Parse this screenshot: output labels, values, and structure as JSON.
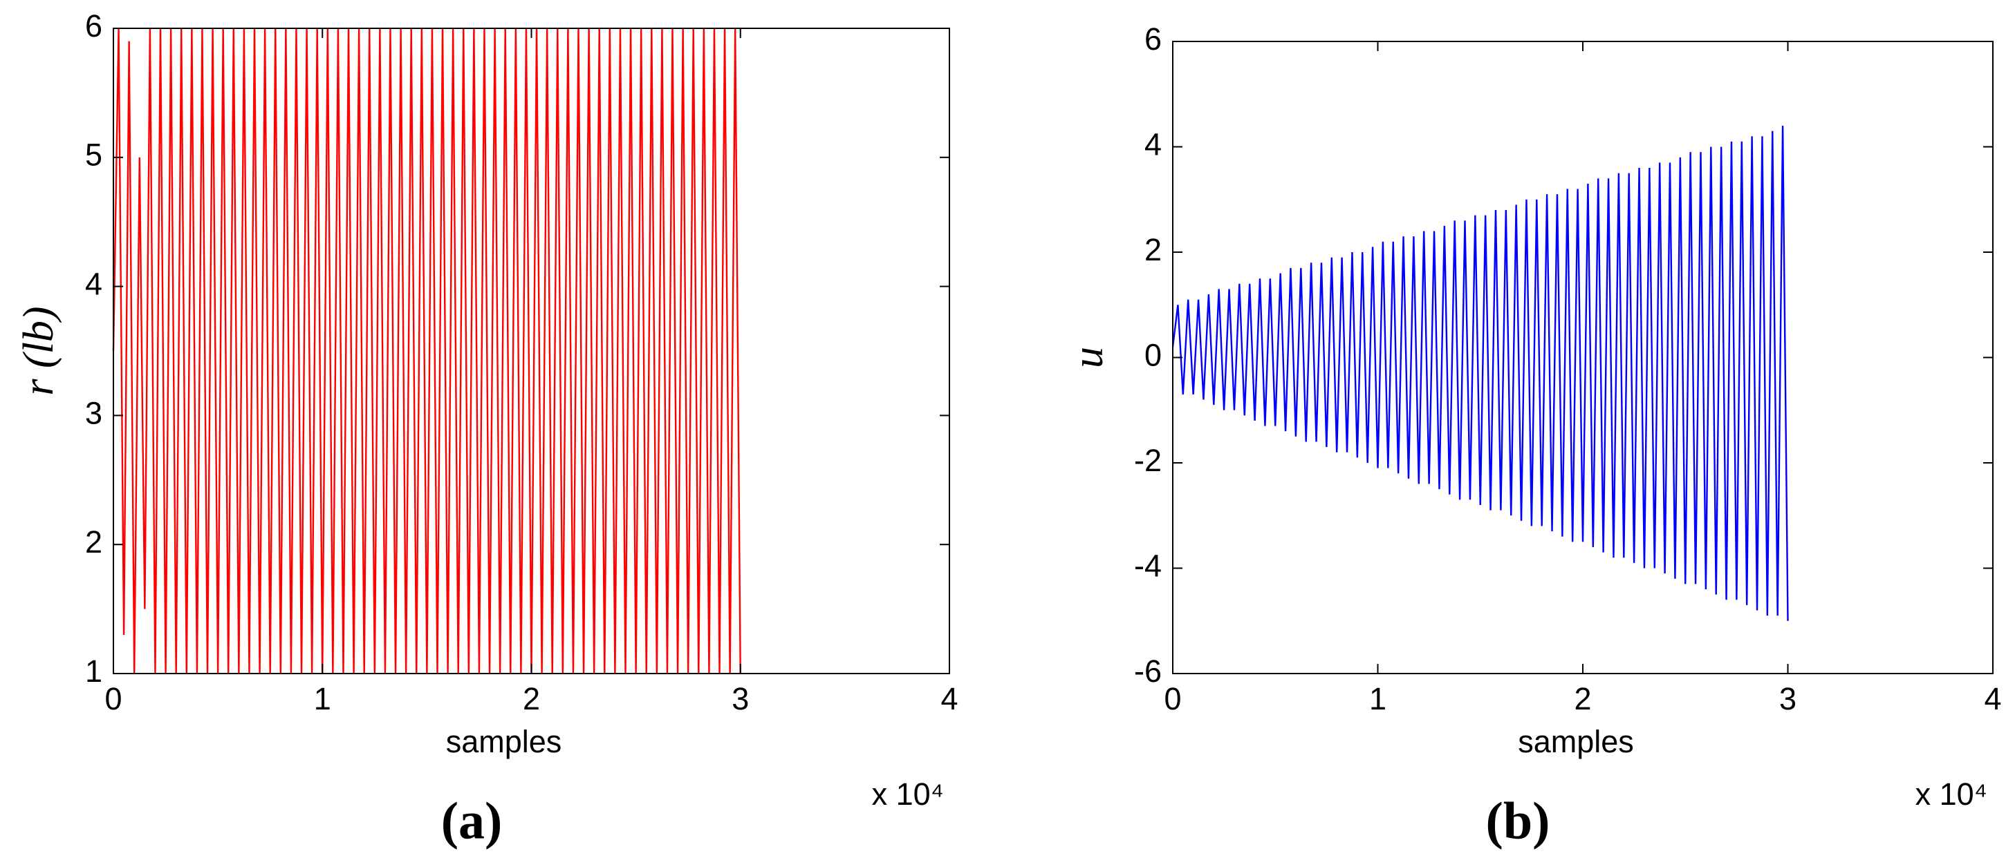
{
  "chart_data": [
    {
      "type": "line",
      "panel_label": "(a)",
      "xlabel": "samples",
      "ylabel": "r (lb)",
      "x_exponent_label": "x 10⁴",
      "color": "#ff0000",
      "xlim": [
        0,
        40000
      ],
      "xticks": [
        {
          "value": 0,
          "label": "0"
        },
        {
          "value": 10000,
          "label": "1"
        },
        {
          "value": 20000,
          "label": "2"
        },
        {
          "value": 30000,
          "label": "3"
        },
        {
          "value": 40000,
          "label": "4"
        }
      ],
      "ylim": [
        1,
        6
      ],
      "yticks": [
        1,
        2,
        3,
        4,
        5,
        6
      ],
      "x": [
        0,
        250,
        500,
        750,
        1000,
        1250,
        1500,
        1750,
        2000,
        2250,
        2500,
        2750,
        3000,
        3250,
        3500,
        3750,
        4000,
        4250,
        4500,
        4750,
        5000,
        5250,
        5500,
        5750,
        6000,
        6250,
        6500,
        6750,
        7000,
        7250,
        7500,
        7750,
        8000,
        8250,
        8500,
        8750,
        9000,
        9250,
        9500,
        9750,
        10000,
        10250,
        10500,
        10750,
        11000,
        11250,
        11500,
        11750,
        12000,
        12250,
        12500,
        12750,
        13000,
        13250,
        13500,
        13750,
        14000,
        14250,
        14500,
        14750,
        15000,
        15250,
        15500,
        15750,
        16000,
        16250,
        16500,
        16750,
        17000,
        17250,
        17500,
        17750,
        18000,
        18250,
        18500,
        18750,
        19000,
        19250,
        19500,
        19750,
        20000,
        20250,
        20500,
        20750,
        21000,
        21250,
        21500,
        21750,
        22000,
        22250,
        22500,
        22750,
        23000,
        23250,
        23500,
        23750,
        24000,
        24250,
        24500,
        24750,
        25000,
        25250,
        25500,
        25750,
        26000,
        26250,
        26500,
        26750,
        27000,
        27250,
        27500,
        27750,
        28000,
        28250,
        28500,
        28750,
        29000,
        29250,
        29500,
        29750,
        30000
      ],
      "values": [
        3.5,
        6,
        1.3,
        5.9,
        1,
        5,
        1.5,
        6,
        1,
        6,
        1,
        6,
        1,
        6,
        1,
        6,
        1,
        6,
        1,
        6,
        1,
        6,
        1,
        6,
        1,
        6,
        1,
        6,
        1,
        6,
        1,
        6,
        1,
        6,
        1,
        6,
        1,
        6,
        1,
        6,
        1,
        6,
        1,
        6,
        1,
        6,
        1,
        6,
        1,
        6,
        1,
        6,
        1,
        6,
        1,
        6,
        1,
        6,
        1,
        6,
        1,
        6,
        1,
        6,
        1,
        6,
        1,
        6,
        1,
        6,
        1,
        6,
        1,
        6,
        1,
        6,
        1,
        6,
        1,
        6,
        1,
        6,
        1,
        6,
        1,
        6,
        1,
        6,
        1,
        6,
        1,
        6,
        1,
        6,
        1,
        6,
        1,
        6,
        1,
        6,
        1,
        6,
        1,
        6,
        1,
        6,
        1,
        6,
        1,
        6,
        1,
        6,
        1,
        6,
        1,
        6,
        1,
        6,
        1,
        6,
        1
      ]
    },
    {
      "type": "line",
      "panel_label": "(b)",
      "xlabel": "samples",
      "ylabel": "u",
      "x_exponent_label": "x 10⁴",
      "color": "#0000ff",
      "xlim": [
        0,
        40000
      ],
      "xticks": [
        {
          "value": 0,
          "label": "0"
        },
        {
          "value": 10000,
          "label": "1"
        },
        {
          "value": 20000,
          "label": "2"
        },
        {
          "value": 30000,
          "label": "3"
        },
        {
          "value": 40000,
          "label": "4"
        }
      ],
      "ylim": [
        -6,
        6
      ],
      "yticks": [
        -6,
        -4,
        -2,
        0,
        2,
        4,
        6
      ],
      "x": [
        0,
        250,
        500,
        750,
        1000,
        1250,
        1500,
        1750,
        2000,
        2250,
        2500,
        2750,
        3000,
        3250,
        3500,
        3750,
        4000,
        4250,
        4500,
        4750,
        5000,
        5250,
        5500,
        5750,
        6000,
        6250,
        6500,
        6750,
        7000,
        7250,
        7500,
        7750,
        8000,
        8250,
        8500,
        8750,
        9000,
        9250,
        9500,
        9750,
        10000,
        10250,
        10500,
        10750,
        11000,
        11250,
        11500,
        11750,
        12000,
        12250,
        12500,
        12750,
        13000,
        13250,
        13500,
        13750,
        14000,
        14250,
        14500,
        14750,
        15000,
        15250,
        15500,
        15750,
        16000,
        16250,
        16500,
        16750,
        17000,
        17250,
        17500,
        17750,
        18000,
        18250,
        18500,
        18750,
        19000,
        19250,
        19500,
        19750,
        20000,
        20250,
        20500,
        20750,
        21000,
        21250,
        21500,
        21750,
        22000,
        22250,
        22500,
        22750,
        23000,
        23250,
        23500,
        23750,
        24000,
        24250,
        24500,
        24750,
        25000,
        25250,
        25500,
        25750,
        26000,
        26250,
        26500,
        26750,
        27000,
        27250,
        27500,
        27750,
        28000,
        28250,
        28500,
        28750,
        29000,
        29250,
        29500,
        29750,
        30000
      ],
      "values": [
        0.2,
        1.0,
        -0.7,
        1.1,
        -0.7,
        1.1,
        -0.8,
        1.2,
        -0.9,
        1.3,
        -1.0,
        1.3,
        -1.0,
        1.4,
        -1.1,
        1.4,
        -1.2,
        1.5,
        -1.3,
        1.5,
        -1.3,
        1.6,
        -1.4,
        1.7,
        -1.5,
        1.7,
        -1.6,
        1.8,
        -1.6,
        1.8,
        -1.7,
        1.9,
        -1.8,
        1.9,
        -1.8,
        2.0,
        -1.9,
        2.0,
        -2.0,
        2.1,
        -2.1,
        2.2,
        -2.1,
        2.2,
        -2.2,
        2.3,
        -2.3,
        2.3,
        -2.4,
        2.4,
        -2.4,
        2.4,
        -2.5,
        2.5,
        -2.6,
        2.6,
        -2.7,
        2.6,
        -2.7,
        2.7,
        -2.8,
        2.7,
        -2.9,
        2.8,
        -2.9,
        2.8,
        -3.0,
        2.9,
        -3.1,
        3.0,
        -3.2,
        3.0,
        -3.2,
        3.1,
        -3.3,
        3.1,
        -3.4,
        3.2,
        -3.5,
        3.2,
        -3.5,
        3.3,
        -3.6,
        3.4,
        -3.7,
        3.4,
        -3.8,
        3.5,
        -3.8,
        3.5,
        -3.9,
        3.6,
        -4.0,
        3.6,
        -4.0,
        3.7,
        -4.1,
        3.7,
        -4.2,
        3.8,
        -4.3,
        3.9,
        -4.3,
        3.9,
        -4.4,
        4.0,
        -4.5,
        4.0,
        -4.6,
        4.1,
        -4.6,
        4.1,
        -4.7,
        4.2,
        -4.8,
        4.2,
        -4.9,
        4.3,
        -4.9,
        4.4,
        -5.0
      ]
    }
  ]
}
